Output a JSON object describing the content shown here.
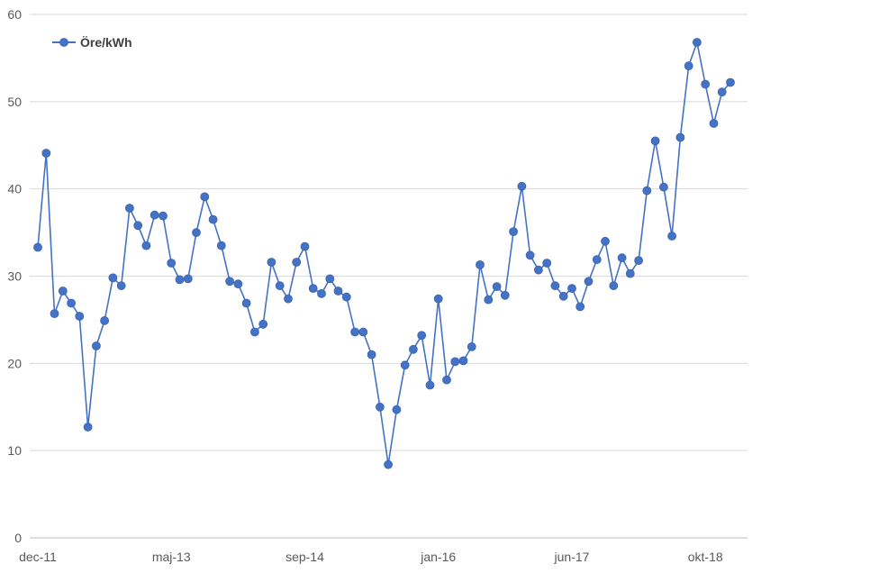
{
  "chart_data": {
    "type": "line",
    "series": [
      {
        "name": "Öre/kWh",
        "values": [
          33.3,
          44.1,
          25.7,
          28.3,
          26.9,
          25.4,
          12.7,
          22.0,
          24.9,
          29.8,
          28.9,
          37.8,
          35.8,
          33.5,
          37.0,
          36.9,
          31.5,
          29.6,
          29.7,
          35.0,
          39.1,
          36.5,
          33.5,
          29.4,
          29.1,
          26.9,
          23.6,
          24.5,
          31.6,
          28.9,
          27.4,
          31.6,
          33.4,
          28.6,
          28.0,
          29.7,
          28.3,
          27.6,
          23.6,
          23.6,
          21.0,
          15.0,
          8.4,
          14.7,
          19.8,
          21.6,
          23.2,
          17.5,
          27.4,
          18.1,
          20.2,
          20.3,
          21.9,
          31.3,
          27.3,
          28.8,
          27.8,
          35.1,
          40.3,
          32.4,
          30.7,
          31.5,
          28.9,
          27.7,
          28.6,
          26.5,
          29.4,
          31.9,
          34.0,
          28.9,
          32.1,
          30.3,
          31.8,
          39.8,
          45.5,
          40.2,
          34.6,
          45.9,
          54.1,
          56.8,
          52.0,
          47.5,
          51.1,
          52.2
        ],
        "color": "#4472C4"
      }
    ],
    "x_tick_labels": [
      "dec-11",
      "maj-13",
      "sep-14",
      "jan-16",
      "jun-17",
      "okt-18"
    ],
    "y_ticks": [
      0,
      10,
      20,
      30,
      40,
      50,
      60
    ],
    "ylim": [
      0,
      60
    ],
    "grid": "horizontal",
    "legend_position": "top-left"
  }
}
